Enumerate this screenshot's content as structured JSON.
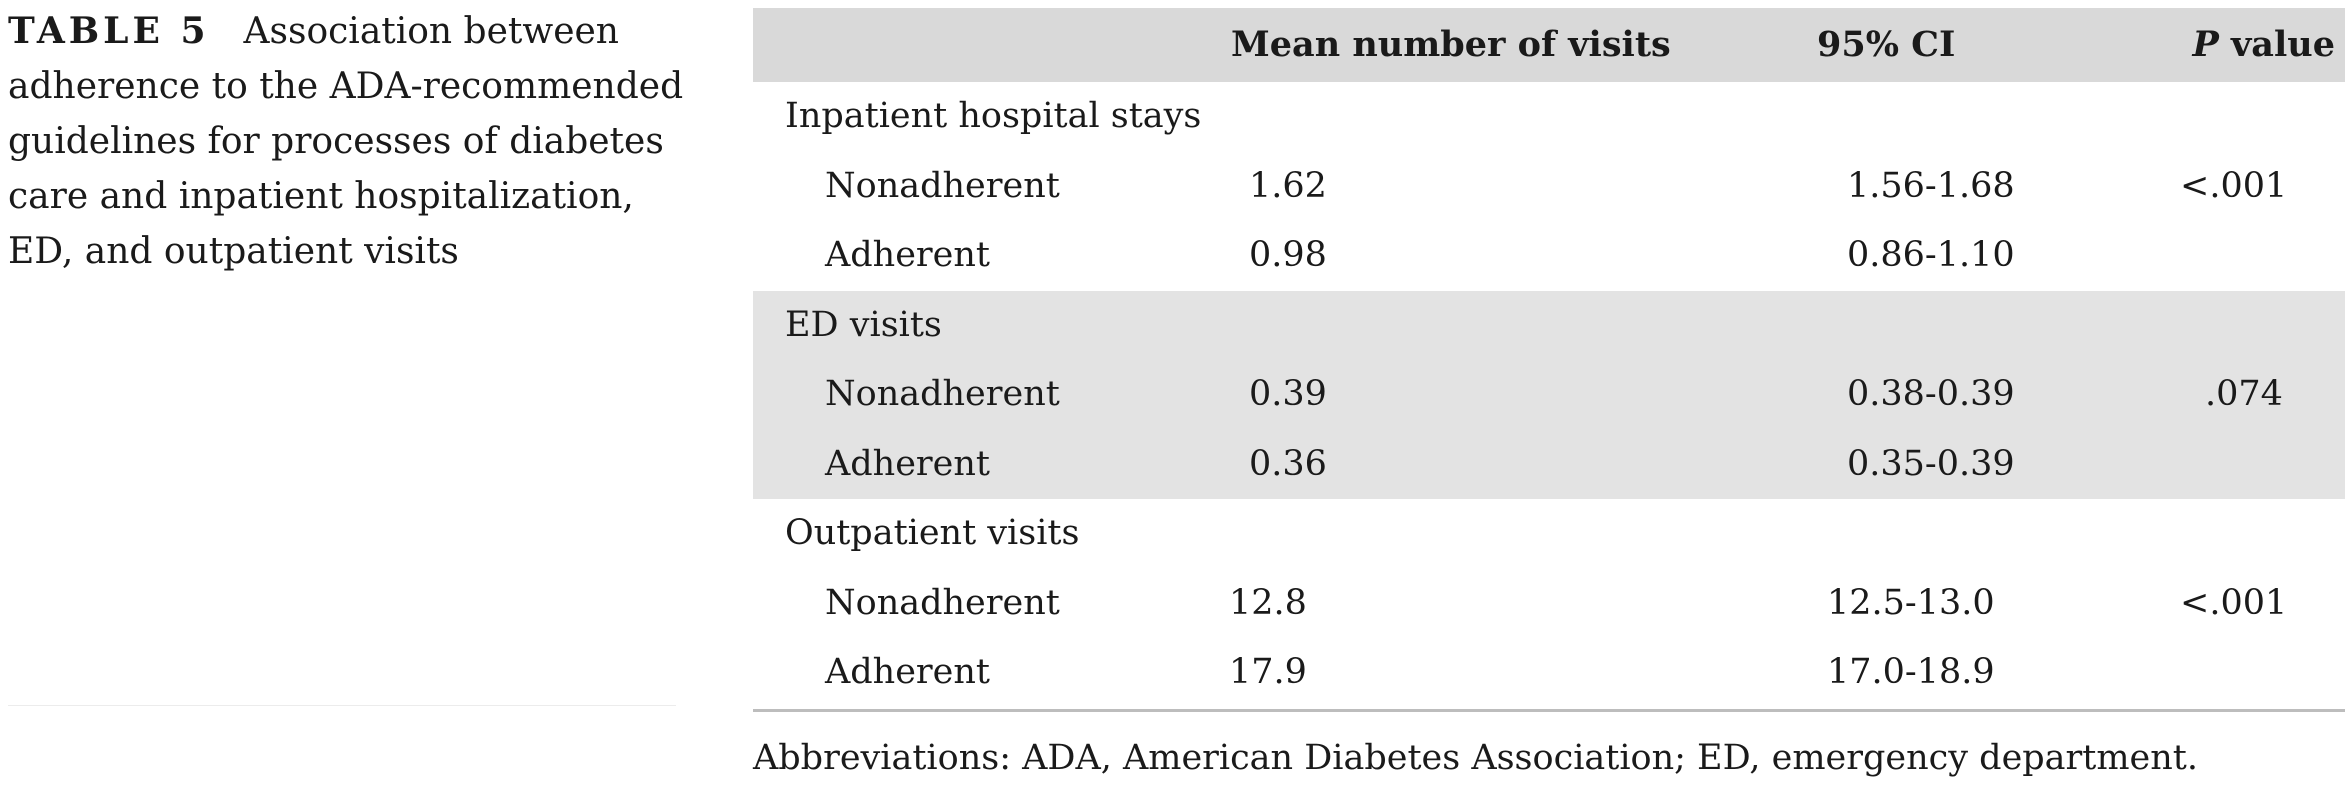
{
  "caption": {
    "label": "TABLE 5",
    "text": "Association between adherence to the ADA-recommended guidelines for processes of diabetes care and inpatient hospitalization, ED, and outpatient visits"
  },
  "table": {
    "headers": {
      "category": "",
      "mean": "Mean number of visits",
      "ci": "95% CI",
      "p_italic": "P",
      "p_rest": " value"
    },
    "groups": [
      {
        "title": "Inpatient hospital stays",
        "rows": [
          {
            "label": "Nonadherent",
            "mean": "1.62",
            "ci": "1.56-1.68",
            "p": "<.001"
          },
          {
            "label": "Adherent",
            "mean": "0.98",
            "ci": "0.86-1.10",
            "p": ""
          }
        ]
      },
      {
        "title": "ED visits",
        "rows": [
          {
            "label": "Nonadherent",
            "mean": "0.39",
            "ci": "0.38-0.39",
            "p": ".074"
          },
          {
            "label": "Adherent",
            "mean": "0.36",
            "ci": "0.35-0.39",
            "p": ""
          }
        ]
      },
      {
        "title": "Outpatient visits",
        "rows": [
          {
            "label": "Nonadherent",
            "mean": "12.8",
            "ci": "12.5-13.0",
            "p": "<.001"
          },
          {
            "label": "Adherent",
            "mean": "17.9",
            "ci": "17.0-18.9",
            "p": ""
          }
        ]
      }
    ]
  },
  "footnote": "Abbreviations: ADA, American Diabetes Association; ED, emergency department.",
  "colors": {
    "header_bg": "#d9d9d9",
    "shaded_group_bg": "#e3e3e3",
    "rule": "#bdbdbd",
    "text": "#1a1a1a"
  }
}
